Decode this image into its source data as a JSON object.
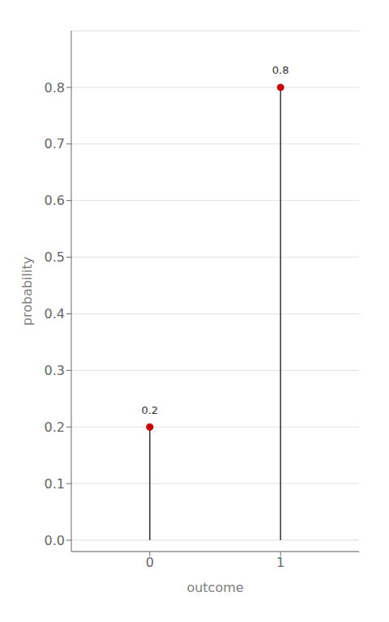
{
  "chart_data": {
    "type": "lollipop",
    "x": [
      0,
      1
    ],
    "values": [
      0.2,
      0.8
    ],
    "color": "#CC0000",
    "xlabel": "outcome",
    "ylabel": "probability",
    "xlim": [
      -0.6,
      1.6
    ],
    "xticks": [
      0,
      1
    ],
    "ylim": [
      -0.02,
      0.9
    ],
    "yticks": [
      {
        "value": 0,
        "label": "0.0"
      },
      0.1,
      0.2,
      0.3,
      0.4,
      0.5,
      0.6,
      0.7,
      0.8
    ],
    "grid": "y",
    "data_labels": true
  }
}
